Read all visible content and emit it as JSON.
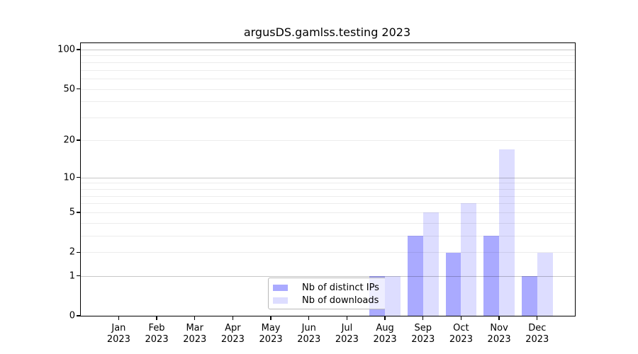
{
  "chart_data": {
    "type": "bar",
    "title": "argusDS.gamlss.testing 2023",
    "categories": [
      "Jan",
      "Feb",
      "Mar",
      "Apr",
      "May",
      "Jun",
      "Jul",
      "Aug",
      "Sep",
      "Oct",
      "Nov",
      "Dec"
    ],
    "category_year": "2023",
    "series": [
      {
        "name": "Nb of distinct IPs",
        "color": "#AAAAFF",
        "values": [
          0,
          0,
          0,
          0,
          0,
          0,
          0,
          1,
          3,
          2,
          3,
          1
        ]
      },
      {
        "name": "Nb of downloads",
        "color": "#DDDDFF",
        "values": [
          0,
          0,
          0,
          0,
          0,
          0,
          0,
          1,
          5,
          6,
          17,
          2
        ]
      }
    ],
    "yscale": "log1p",
    "ylim": [
      0,
      100
    ],
    "yticks": [
      0,
      1,
      2,
      5,
      10,
      20,
      50,
      100
    ],
    "major_gridlines": [
      1,
      10,
      100
    ],
    "minor_gridlines": [
      2,
      3,
      4,
      5,
      6,
      7,
      8,
      9,
      20,
      30,
      40,
      50,
      60,
      70,
      80,
      90
    ],
    "legend_position": "lower center, overlapping August bars",
    "grid_on": true,
    "frame_color": "#000000",
    "background_color": "#ffffff"
  }
}
